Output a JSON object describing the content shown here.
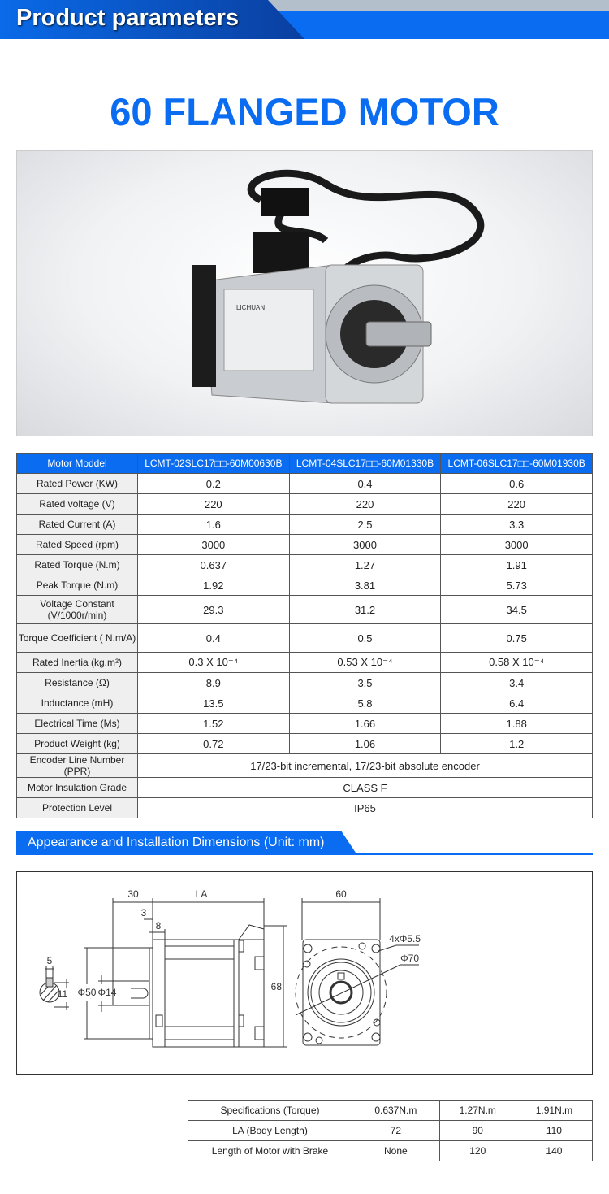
{
  "header": {
    "title": "Product parameters"
  },
  "product_title": "60 FLANGED MOTOR",
  "photo": {
    "brand": "LICHUAN",
    "colors": {
      "body": "#c9ccd0",
      "cable": "#1a1a1a"
    }
  },
  "spec_table": {
    "headers": [
      "Motor Moddel",
      "LCMT-02SLC17□□-60M00630B",
      "LCMT-04SLC17□□-60M01330B",
      "LCMT-06SLC17□□-60M01930B"
    ],
    "rows": [
      {
        "label": "Rated Power (KW)",
        "values": [
          "0.2",
          "0.4",
          "0.6"
        ]
      },
      {
        "label": "Rated voltage (V)",
        "values": [
          "220",
          "220",
          "220"
        ]
      },
      {
        "label": "Rated Current (A)",
        "values": [
          "1.6",
          "2.5",
          "3.3"
        ]
      },
      {
        "label": "Rated Speed (rpm)",
        "values": [
          "3000",
          "3000",
          "3000"
        ]
      },
      {
        "label": "Rated Torque (N.m)",
        "values": [
          "0.637",
          "1.27",
          "1.91"
        ]
      },
      {
        "label": "Peak Torque (N.m)",
        "values": [
          "1.92",
          "3.81",
          "5.73"
        ]
      },
      {
        "label": "Voltage Constant (V/1000r/min)",
        "values": [
          "29.3",
          "31.2",
          "34.5"
        ]
      },
      {
        "label": "Torque Coefficient ( N.m/A)",
        "values": [
          "0.4",
          "0.5",
          "0.75"
        ]
      },
      {
        "label": "Rated Inertia (kg.m²)",
        "values": [
          "0.3 X 10⁻⁴",
          "0.53 X 10⁻⁴",
          "0.58 X 10⁻⁴"
        ]
      },
      {
        "label": "Resistance (Ω)",
        "values": [
          "8.9",
          "3.5",
          "3.4"
        ]
      },
      {
        "label": "Inductance (mH)",
        "values": [
          "13.5",
          "5.8",
          "6.4"
        ]
      },
      {
        "label": "Electrical Time (Ms)",
        "values": [
          "1.52",
          "1.66",
          "1.88"
        ]
      },
      {
        "label": "Product Weight (kg)",
        "values": [
          "0.72",
          "1.06",
          "1.2"
        ]
      }
    ],
    "merged_rows": [
      {
        "label": "Encoder Line Number (PPR)",
        "value": "17/23-bit incremental, 17/23-bit absolute encoder"
      },
      {
        "label": "Motor Insulation Grade",
        "value": "CLASS F"
      },
      {
        "label": "Protection Level",
        "value": "IP65"
      }
    ]
  },
  "dimensions_section": {
    "title": "Appearance and Installation Dimensions (Unit: mm)"
  },
  "drawing": {
    "d30": "30",
    "la": "LA",
    "d60": "60",
    "d3": "3",
    "d8": "8",
    "d5": "5",
    "d11": "11",
    "phi50": "Φ50",
    "phi14": "Φ14",
    "d68": "68",
    "holes": "4xΦ5.5",
    "phi70": "Φ70"
  },
  "dims_table": {
    "headers": [
      "Specifications (Torque)",
      "0.637N.m",
      "1.27N.m",
      "1.91N.m"
    ],
    "rows": [
      {
        "label": "LA (Body Length)",
        "values": [
          "72",
          "90",
          "110"
        ]
      },
      {
        "label": "Length of Motor with Brake",
        "values": [
          "None",
          "120",
          "140"
        ]
      }
    ]
  }
}
